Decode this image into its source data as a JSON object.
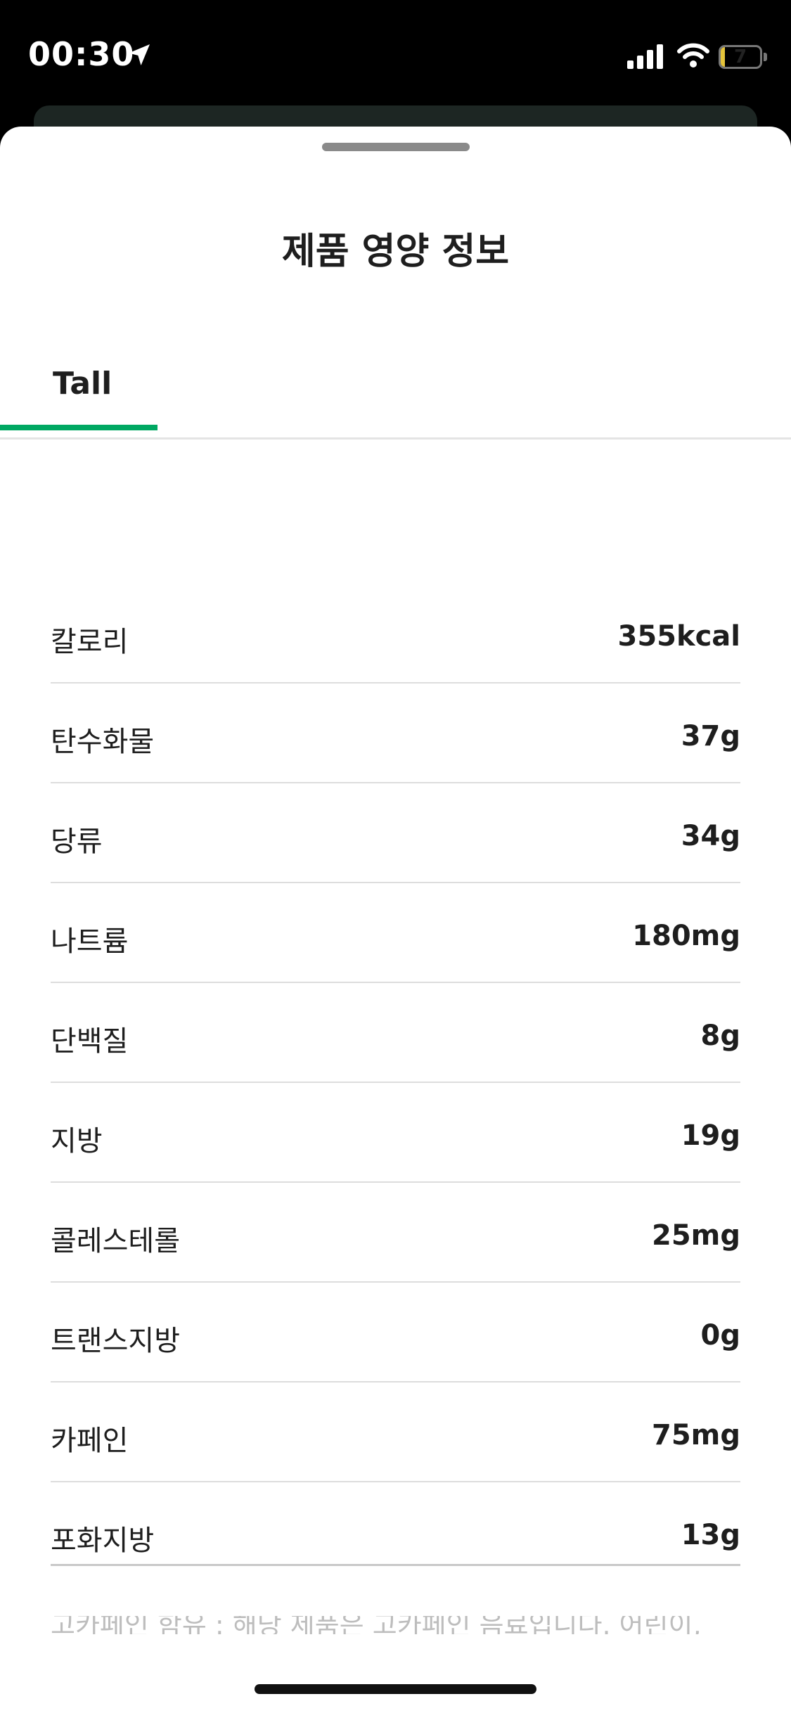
{
  "status_bar": {
    "time": "00:30",
    "battery": "7",
    "battery_level": 0.07
  },
  "sheet": {
    "title": "제품 영양 정보"
  },
  "tabs": [
    {
      "label": "Tall",
      "selected": true
    }
  ],
  "nutrition": [
    {
      "label": "칼로리",
      "value": "355kcal"
    },
    {
      "label": "탄수화물",
      "value": "37g"
    },
    {
      "label": "당류",
      "value": "34g"
    },
    {
      "label": "나트륨",
      "value": "180mg"
    },
    {
      "label": "단백질",
      "value": "8g"
    },
    {
      "label": "지방",
      "value": "19g"
    },
    {
      "label": "콜레스테롤",
      "value": "25mg"
    },
    {
      "label": "트랜스지방",
      "value": "0g"
    },
    {
      "label": "카페인",
      "value": "75mg"
    },
    {
      "label": "포화지방",
      "value": "13g"
    }
  ],
  "footnote": "고카페인 함유 : 해당 제품은 고카페인 음료입니다. 어린이,",
  "colors": {
    "accent": "#00a862"
  }
}
